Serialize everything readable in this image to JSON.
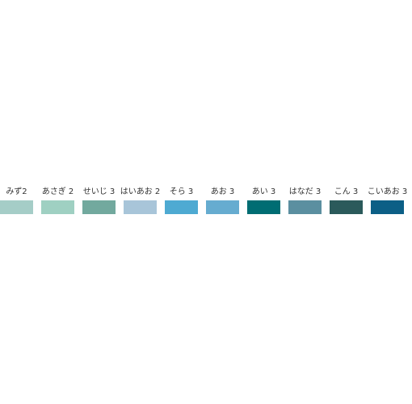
{
  "swatches": [
    {
      "label": "みず2",
      "color": "#a5cdc7"
    },
    {
      "label": "あさぎ 2",
      "color": "#9fd0c2"
    },
    {
      "label": "せいじ 3",
      "color": "#72a99e"
    },
    {
      "label": "はいあお 2",
      "color": "#a8c5d9"
    },
    {
      "label": "そら 3",
      "color": "#4eaad2"
    },
    {
      "label": "あお 3",
      "color": "#66acd0"
    },
    {
      "label": "あい 3",
      "color": "#006d73"
    },
    {
      "label": "はなだ 3",
      "color": "#5b8fa0"
    },
    {
      "label": "こん 3",
      "color": "#2b5a5b"
    },
    {
      "label": "こいあお 3",
      "color": "#0c5f86"
    }
  ]
}
